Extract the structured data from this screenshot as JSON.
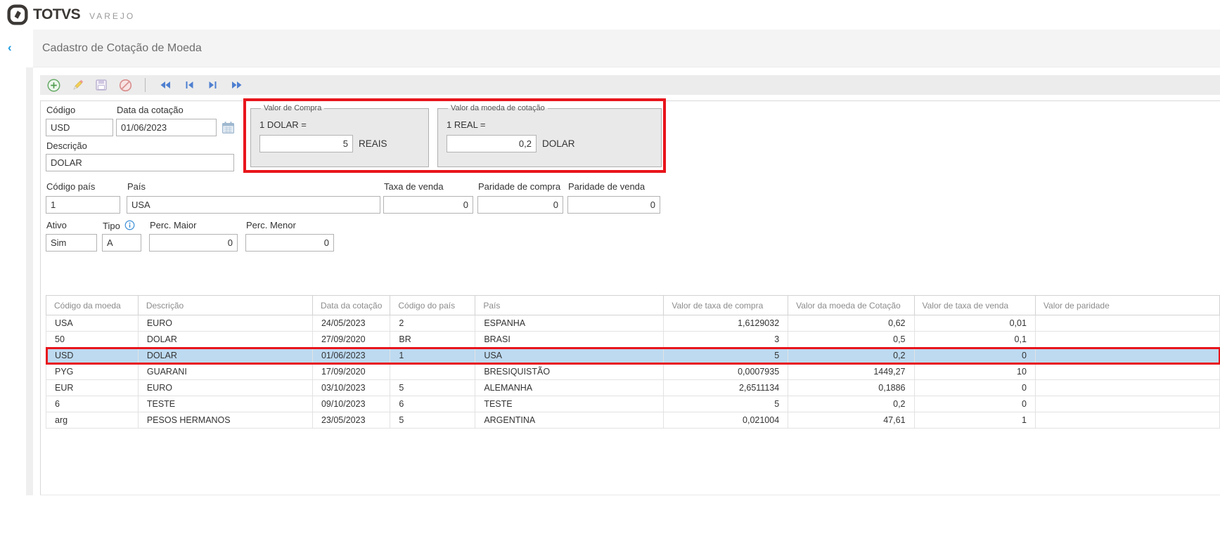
{
  "brand": {
    "name": "TOTVS",
    "product": "VAREJO"
  },
  "header": {
    "title": "Cadastro de Cotação de Moeda"
  },
  "icons": {
    "back": "‹",
    "add": "plus-circle",
    "edit": "pencil",
    "save": "floppy-disk",
    "cancel": "slashed-circle",
    "nav_first": "double-left-triangles",
    "nav_prev": "bar-left-triangle",
    "nav_next": "right-triangle-bar",
    "nav_last": "double-right-triangles",
    "calendar": "calendar-grid",
    "info": "circled-i",
    "brand_mark": "totvs-leaf-square"
  },
  "form": {
    "codigo": {
      "label": "Código",
      "value": "USD"
    },
    "data_cotacao": {
      "label": "Data da cotação",
      "value": "01/06/2023"
    },
    "descricao": {
      "label": "Descrição",
      "value": "DOLAR"
    },
    "valor_compra": {
      "legend": "Valor de Compra",
      "equation": "1 DOLAR =",
      "value": "5",
      "unit": "REAIS"
    },
    "valor_moeda_cotacao": {
      "legend": "Valor da moeda de cotação",
      "equation": "1 REAL =",
      "value": "0,2",
      "unit": "DOLAR"
    },
    "codigo_pais": {
      "label": "Código país",
      "value": "1"
    },
    "pais": {
      "label": "País",
      "value": "USA"
    },
    "taxa_venda": {
      "label": "Taxa de venda",
      "value": "0"
    },
    "paridade_compra": {
      "label": "Paridade de compra",
      "value": "0"
    },
    "paridade_venda": {
      "label": "Paridade de venda",
      "value": "0"
    },
    "ativo": {
      "label": "Ativo",
      "value": "Sim"
    },
    "tipo": {
      "label": "Tipo",
      "value": "A"
    },
    "perc_maior": {
      "label": "Perc. Maior",
      "value": "0"
    },
    "perc_menor": {
      "label": "Perc. Menor",
      "value": "0"
    }
  },
  "table": {
    "columns": [
      "Código da moeda",
      "Descrição",
      "Data da cotação",
      "Código do país",
      "País",
      "Valor de taxa de compra",
      "Valor da moeda de Cotação",
      "Valor de taxa de venda",
      "Valor de paridade"
    ],
    "numeric_columns": [
      5,
      6,
      7
    ],
    "selected_row_index": 2,
    "rows": [
      [
        "USA",
        "EURO",
        "24/05/2023",
        "2",
        "ESPANHA",
        "1,6129032",
        "0,62",
        "0,01",
        ""
      ],
      [
        "50",
        "DOLAR",
        "27/09/2020",
        "BR",
        "BRASI",
        "3",
        "0,5",
        "0,1",
        ""
      ],
      [
        "USD",
        "DOLAR",
        "01/06/2023",
        "1",
        "USA",
        "5",
        "0,2",
        "0",
        ""
      ],
      [
        "PYG",
        "GUARANI",
        "17/09/2020",
        "",
        "BRESIQUISTÃO",
        "0,0007935",
        "1449,27",
        "10",
        ""
      ],
      [
        "EUR",
        "EURO",
        "03/10/2023",
        "5",
        "ALEMANHA",
        "2,6511134",
        "0,1886",
        "0",
        ""
      ],
      [
        "6",
        "TESTE",
        "09/10/2023",
        "6",
        "TESTE",
        "5",
        "0,2",
        "0",
        ""
      ],
      [
        "arg",
        "PESOS HERMANOS",
        "23/05/2023",
        "5",
        "ARGENTINA",
        "0,021004",
        "47,61",
        "1",
        ""
      ]
    ]
  },
  "colors": {
    "annotation_red": "#e8151b",
    "selected_row_bg": "#bddaf1",
    "accent_blue": "#1c9be0",
    "toolbar_nav_blue": "#4e7fd0",
    "toolbar_bg": "#ececec"
  }
}
